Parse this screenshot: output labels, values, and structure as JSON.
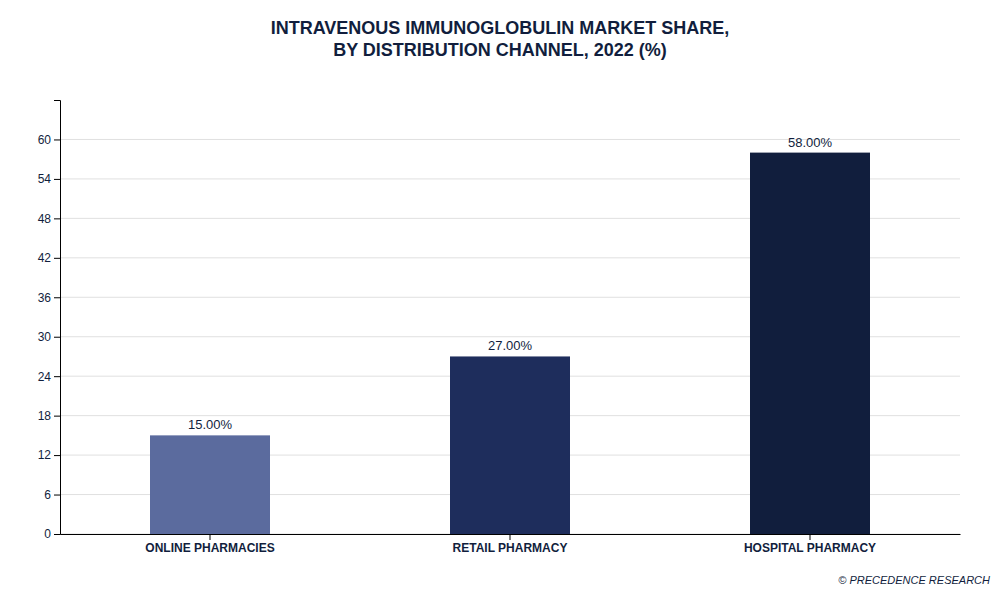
{
  "chart_data": {
    "type": "bar",
    "title": "INTRAVENOUS IMMUNOGLOBULIN MARKET SHARE,\nBY DISTRIBUTION CHANNEL, 2022 (%)",
    "categories": [
      "ONLINE PHARMACIES",
      "RETAIL PHARMACY",
      "HOSPITAL PHARMACY"
    ],
    "values": [
      15.0,
      27.0,
      58.0
    ],
    "value_labels": [
      "15.00%",
      "27.00%",
      "58.00%"
    ],
    "colors": [
      "#5b6b9e",
      "#1e2d5c",
      "#111e3d"
    ],
    "ylim": [
      0,
      66
    ],
    "yticks": [
      0,
      6,
      12,
      18,
      24,
      30,
      36,
      42,
      48,
      54,
      60
    ],
    "grid": true,
    "annotations": [
      "© PRECEDENCE RESEARCH"
    ]
  }
}
